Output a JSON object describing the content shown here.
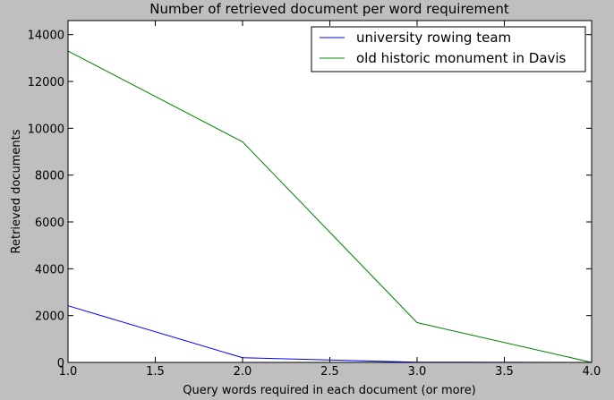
{
  "chart_data": {
    "type": "line",
    "title": "Number of retrieved document per word requirement",
    "xlabel": "Query words required in each document (or more)",
    "ylabel": "Retrieved documents",
    "xlim": [
      1.0,
      4.0
    ],
    "ylim": [
      0,
      14600
    ],
    "xticks": [
      "1.0",
      "1.5",
      "2.0",
      "2.5",
      "3.0",
      "3.5",
      "4.0"
    ],
    "yticks": [
      "0",
      "2000",
      "4000",
      "6000",
      "8000",
      "10000",
      "12000",
      "14000"
    ],
    "x": [
      1.0,
      2.0,
      3.0,
      4.0
    ],
    "series": [
      {
        "name": "university rowing team",
        "color": "#0000ff",
        "values": [
          2420,
          200,
          10,
          0
        ]
      },
      {
        "name": "old historic monument in Davis",
        "color": "#008000",
        "values": [
          13300,
          9420,
          1700,
          0
        ]
      }
    ],
    "legend_position": "top-right",
    "grid": false,
    "background": "#bfbfbf",
    "plot_background": "#ffffff"
  }
}
